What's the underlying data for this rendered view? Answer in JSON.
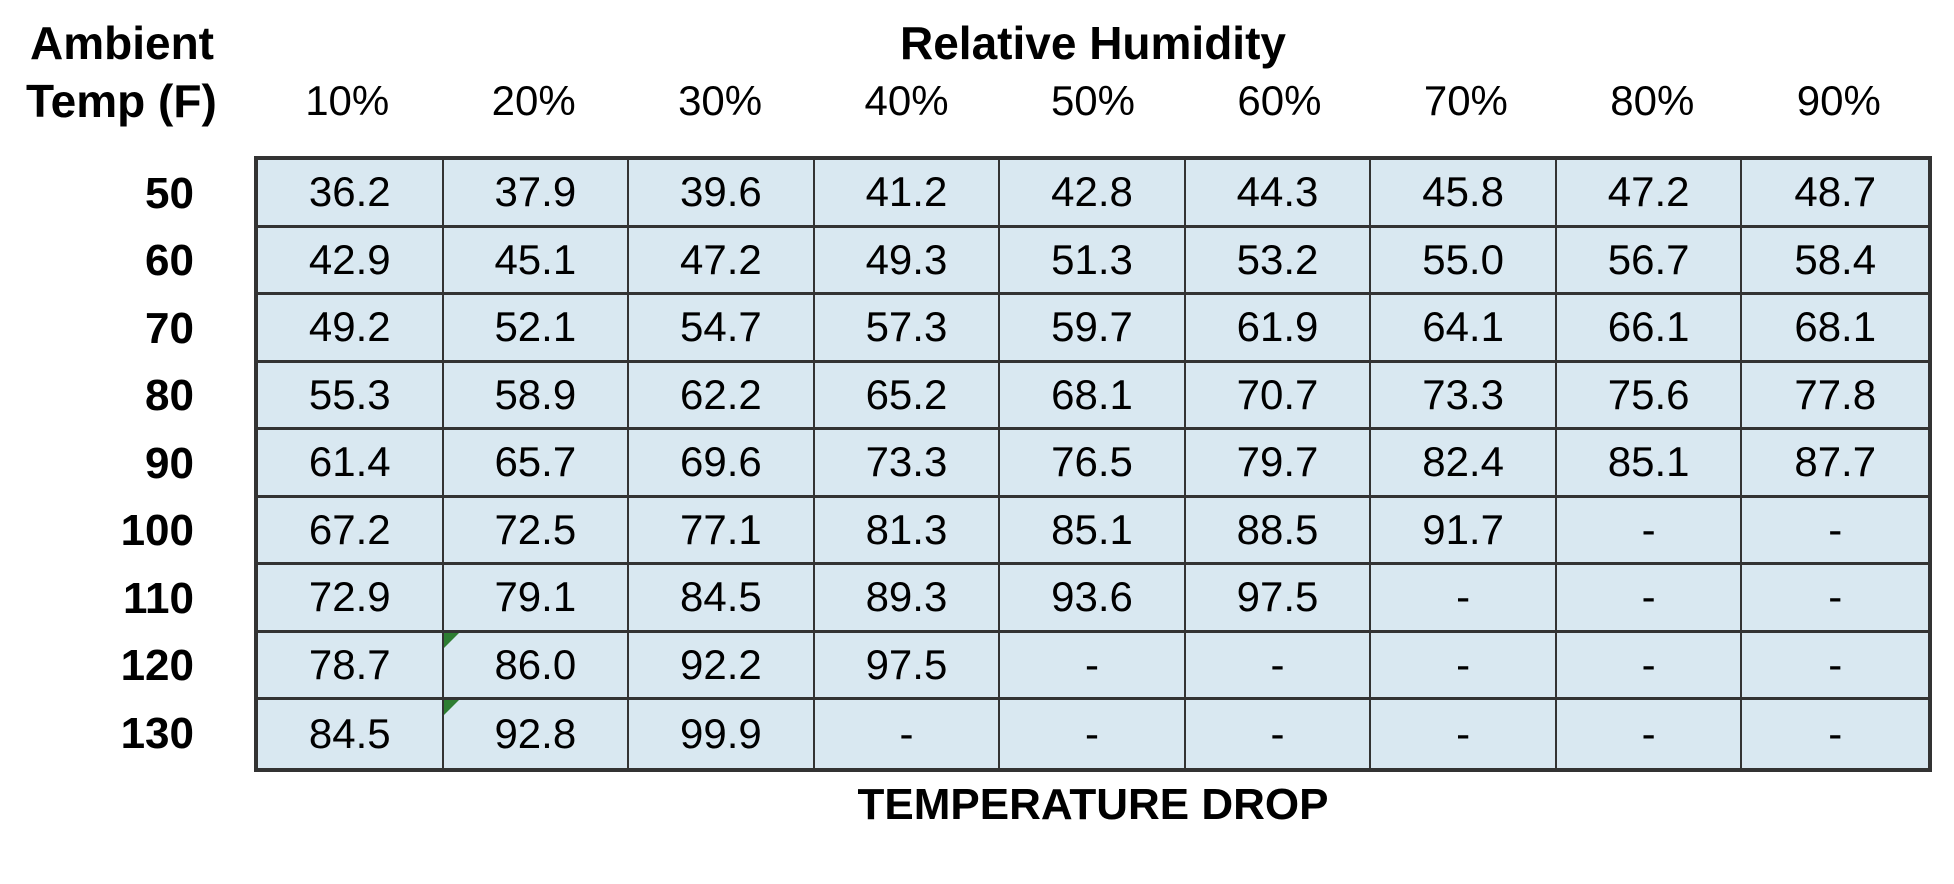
{
  "table": {
    "corner_title_line1": "Ambient",
    "corner_title_line2": "Temp (F)",
    "humidity_title": "Relative Humidity",
    "footer_label": "TEMPERATURE DROP",
    "columns": [
      "10%",
      "20%",
      "30%",
      "40%",
      "50%",
      "60%",
      "70%",
      "80%",
      "90%"
    ],
    "rows": [
      {
        "temp": "50",
        "values": [
          "36.2",
          "37.9",
          "39.6",
          "41.2",
          "42.8",
          "44.3",
          "45.8",
          "47.2",
          "48.7"
        ]
      },
      {
        "temp": "60",
        "values": [
          "42.9",
          "45.1",
          "47.2",
          "49.3",
          "51.3",
          "53.2",
          "55.0",
          "56.7",
          "58.4"
        ]
      },
      {
        "temp": "70",
        "values": [
          "49.2",
          "52.1",
          "54.7",
          "57.3",
          "59.7",
          "61.9",
          "64.1",
          "66.1",
          "68.1"
        ]
      },
      {
        "temp": "80",
        "values": [
          "55.3",
          "58.9",
          "62.2",
          "65.2",
          "68.1",
          "70.7",
          "73.3",
          "75.6",
          "77.8"
        ]
      },
      {
        "temp": "90",
        "values": [
          "61.4",
          "65.7",
          "69.6",
          "73.3",
          "76.5",
          "79.7",
          "82.4",
          "85.1",
          "87.7"
        ]
      },
      {
        "temp": "100",
        "values": [
          "67.2",
          "72.5",
          "77.1",
          "81.3",
          "85.1",
          "88.5",
          "91.7",
          "-",
          "-"
        ]
      },
      {
        "temp": "110",
        "values": [
          "72.9",
          "79.1",
          "84.5",
          "89.3",
          "93.6",
          "97.5",
          "-",
          "-",
          "-"
        ]
      },
      {
        "temp": "120",
        "values": [
          "78.7",
          "86.0",
          "92.2",
          "97.5",
          "-",
          "-",
          "-",
          "-",
          "-"
        ]
      },
      {
        "temp": "130",
        "values": [
          "84.5",
          "92.8",
          "99.9",
          "-",
          "-",
          "-",
          "-",
          "-",
          "-"
        ]
      }
    ],
    "comment_markers": [
      {
        "row": "120",
        "col": "20%"
      },
      {
        "row": "130",
        "col": "20%"
      }
    ],
    "colors": {
      "cell_fill": "#d9e8f1",
      "border": "#333333",
      "marker_green": "#2e7d32",
      "text": "#000000"
    }
  },
  "chart_data": {
    "type": "table",
    "title": "Relative Humidity",
    "row_header": "Ambient Temp (F)",
    "footer": "TEMPERATURE DROP",
    "columns": [
      "10%",
      "20%",
      "30%",
      "40%",
      "50%",
      "60%",
      "70%",
      "80%",
      "90%"
    ],
    "row_categories": [
      50,
      60,
      70,
      80,
      90,
      100,
      110,
      120,
      130
    ],
    "rows": [
      [
        36.2,
        37.9,
        39.6,
        41.2,
        42.8,
        44.3,
        45.8,
        47.2,
        48.7
      ],
      [
        42.9,
        45.1,
        47.2,
        49.3,
        51.3,
        53.2,
        55.0,
        56.7,
        58.4
      ],
      [
        49.2,
        52.1,
        54.7,
        57.3,
        59.7,
        61.9,
        64.1,
        66.1,
        68.1
      ],
      [
        55.3,
        58.9,
        62.2,
        65.2,
        68.1,
        70.7,
        73.3,
        75.6,
        77.8
      ],
      [
        61.4,
        65.7,
        69.6,
        73.3,
        76.5,
        79.7,
        82.4,
        85.1,
        87.7
      ],
      [
        67.2,
        72.5,
        77.1,
        81.3,
        85.1,
        88.5,
        91.7,
        null,
        null
      ],
      [
        72.9,
        79.1,
        84.5,
        89.3,
        93.6,
        97.5,
        null,
        null,
        null
      ],
      [
        78.7,
        86.0,
        92.2,
        97.5,
        null,
        null,
        null,
        null,
        null
      ],
      [
        84.5,
        92.8,
        99.9,
        null,
        null,
        null,
        null,
        null,
        null
      ]
    ]
  }
}
